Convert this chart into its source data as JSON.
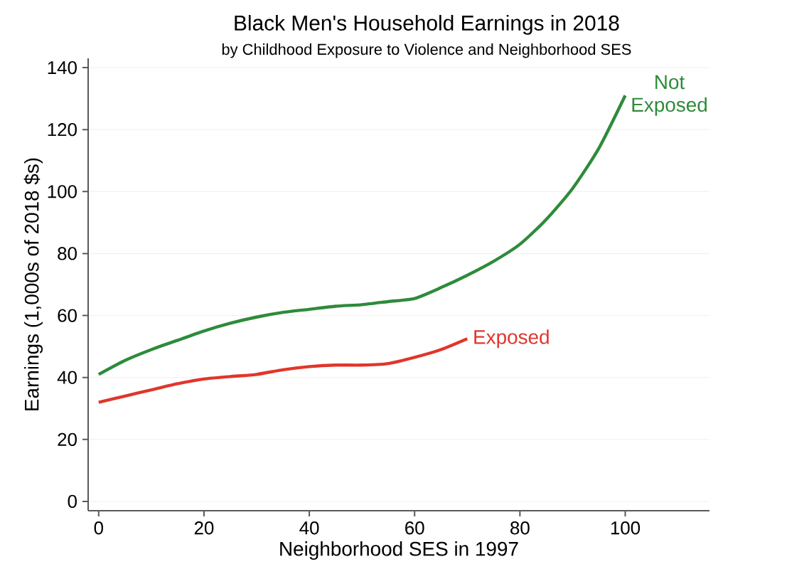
{
  "chart_data": {
    "type": "line",
    "title": "Black Men's Household Earnings in 2018",
    "subtitle": "by Childhood Exposure to Violence and Neighborhood SES",
    "xlabel": "Neighborhood SES in 1997",
    "ylabel": "Earnings (1,000s of 2018 $s)",
    "xlim": [
      -2,
      116
    ],
    "ylim": [
      -3,
      143
    ],
    "xticks": [
      0,
      20,
      40,
      60,
      80,
      100
    ],
    "yticks": [
      0,
      20,
      40,
      60,
      80,
      100,
      120,
      140
    ],
    "grid": "y",
    "series": [
      {
        "name": "Not Exposed",
        "color": "#2e8b3a",
        "x": [
          0,
          5,
          10,
          15,
          20,
          25,
          30,
          35,
          40,
          45,
          50,
          55,
          60,
          65,
          70,
          75,
          80,
          85,
          90,
          95,
          100
        ],
        "values": [
          41,
          45.5,
          49,
          52,
          55,
          57.5,
          59.5,
          61,
          62,
          63,
          63.5,
          64.5,
          65.5,
          69,
          73,
          77.5,
          83,
          91,
          101,
          114,
          131
        ]
      },
      {
        "name": "Exposed",
        "color": "#e0362c",
        "x": [
          0,
          5,
          10,
          15,
          20,
          25,
          30,
          35,
          40,
          45,
          50,
          55,
          60,
          65,
          70
        ],
        "values": [
          32,
          34,
          36,
          38,
          39.5,
          40.3,
          41,
          42.5,
          43.5,
          44,
          44,
          44.5,
          46.5,
          49,
          52.5
        ]
      }
    ]
  }
}
